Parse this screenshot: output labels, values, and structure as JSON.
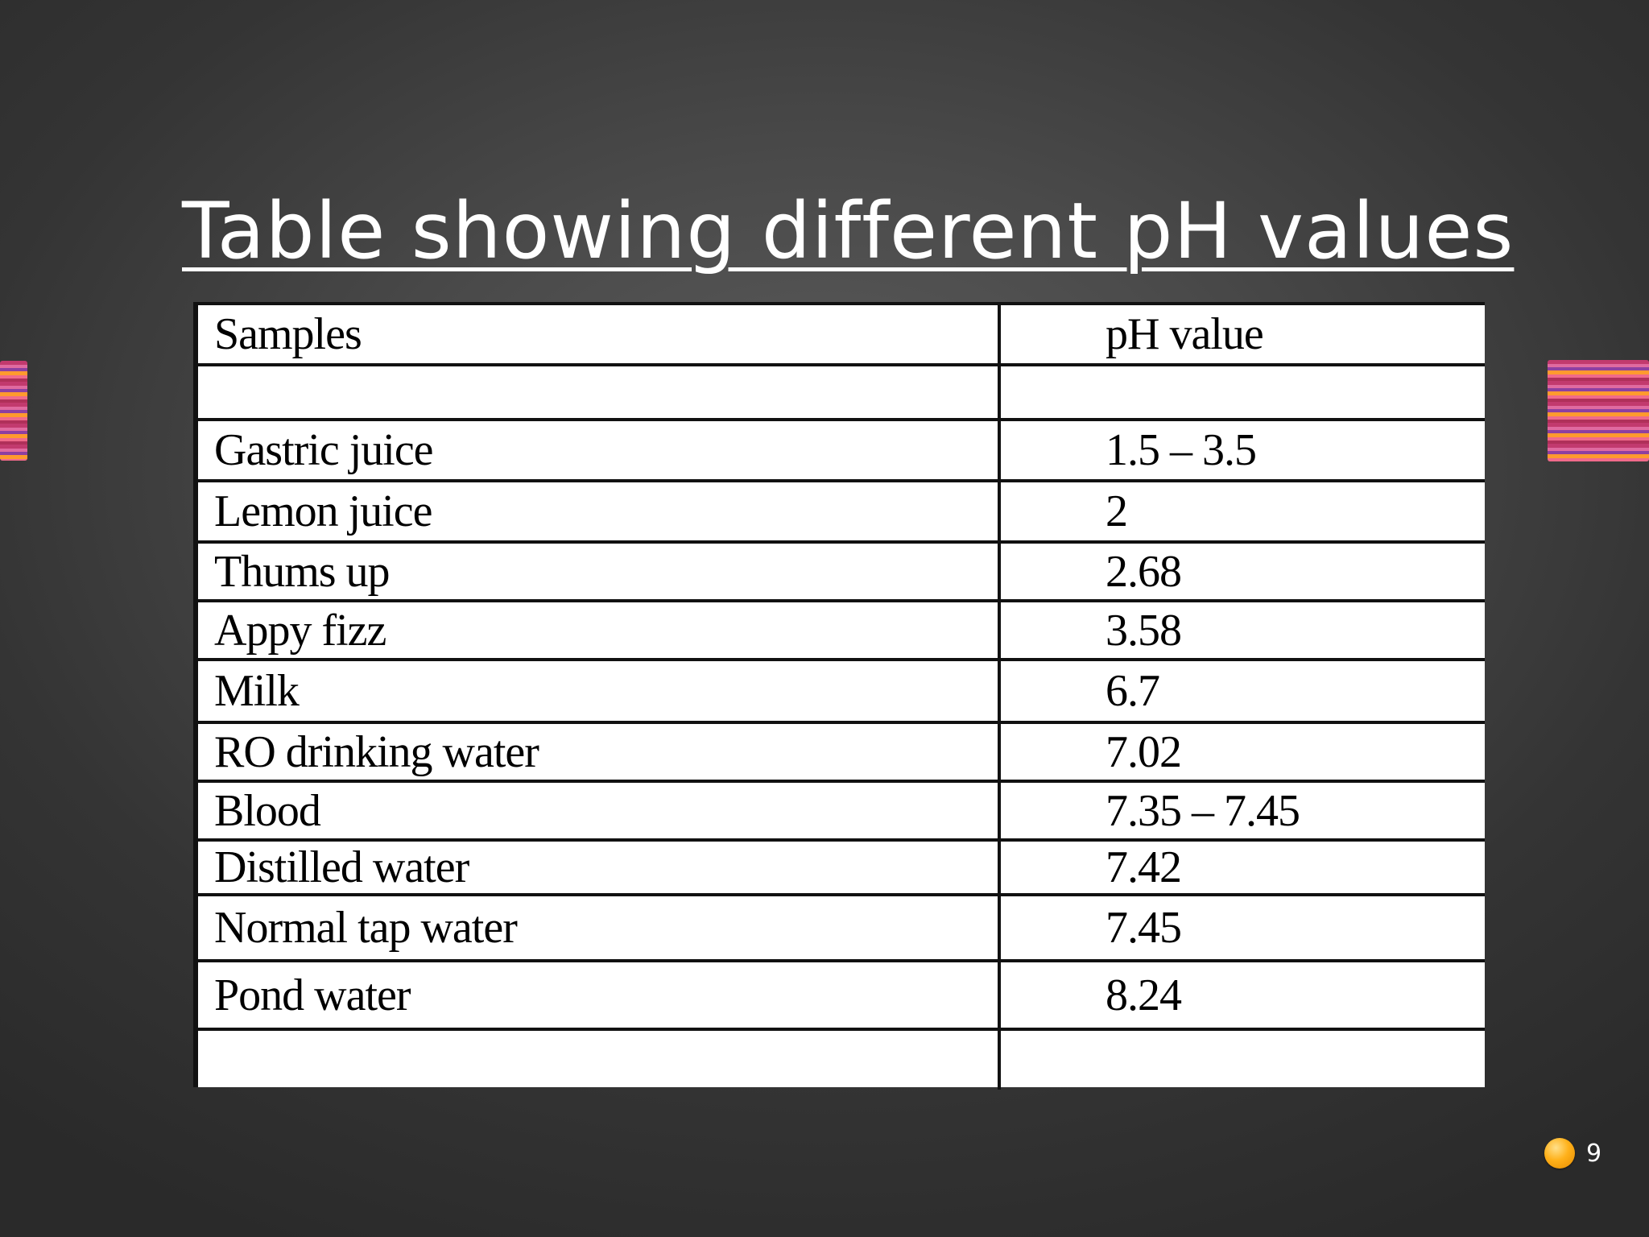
{
  "slide": {
    "title": "Table showing different pH values",
    "page_number": "9"
  },
  "table": {
    "headers": [
      "Samples",
      "pH value"
    ],
    "rows": [
      [
        "",
        ""
      ],
      [
        "Gastric juice",
        "1.5 – 3.5"
      ],
      [
        "Lemon juice",
        "2"
      ],
      [
        "Thums up",
        "2.68"
      ],
      [
        "Appy fizz",
        "3.58"
      ],
      [
        "Milk",
        "6.7"
      ],
      [
        "RO drinking water",
        "7.02"
      ],
      [
        "Blood",
        "7.35 – 7.45"
      ],
      [
        "Distilled water",
        "7.42"
      ],
      [
        "Normal tap water",
        "7.45"
      ],
      [
        "Pond water",
        "8.24"
      ],
      [
        "",
        ""
      ]
    ]
  },
  "decorations": {
    "left_icon": "striped-bar-icon",
    "right_icon": "striped-bar-icon",
    "page_icon": "orange-orb-icon"
  }
}
